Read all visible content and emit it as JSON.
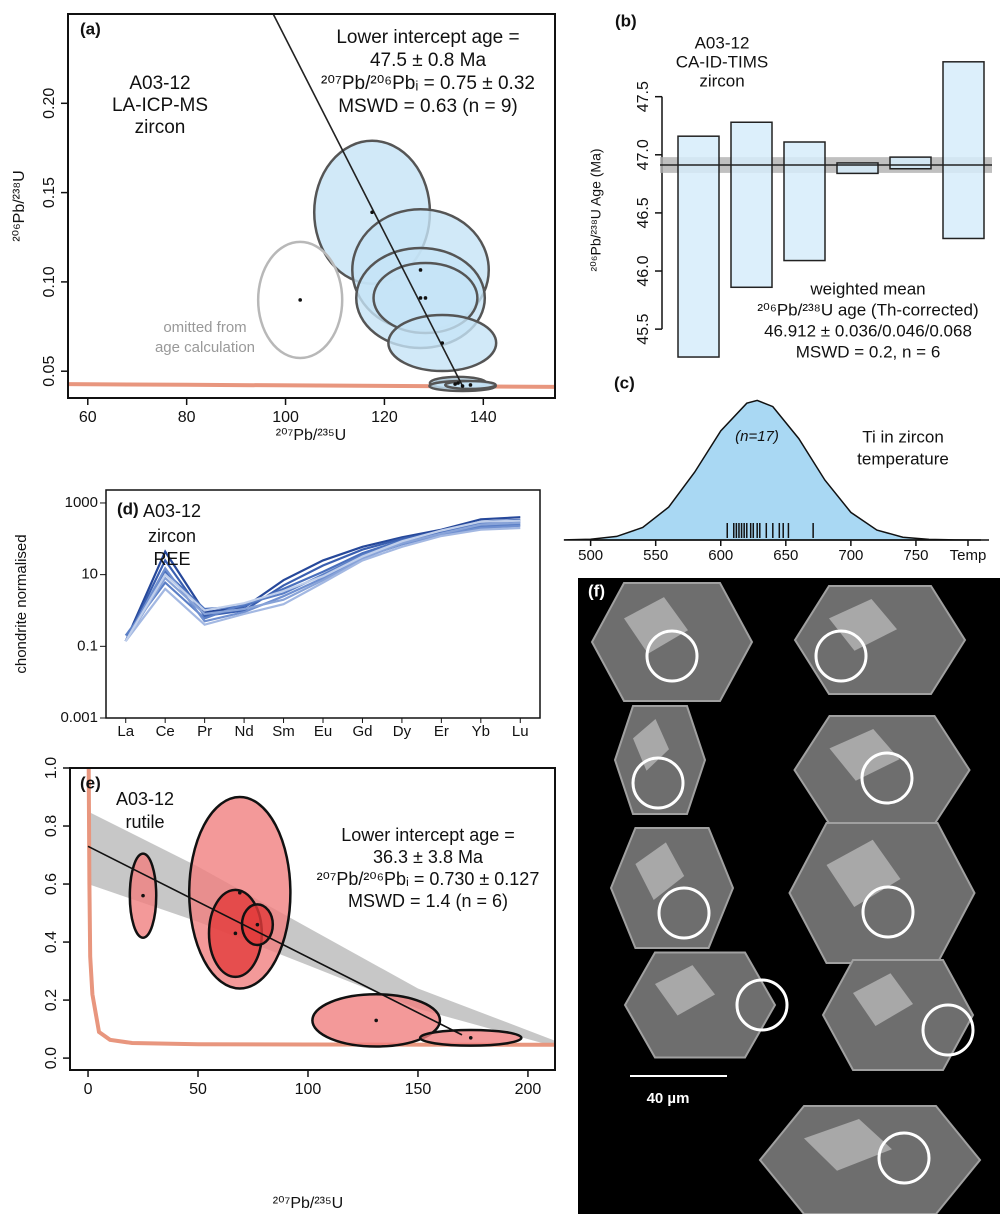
{
  "chart_data": [
    {
      "type": "concordia",
      "label": "(a)",
      "sample": [
        "A03-12",
        "LA-ICP-MS",
        "zircon"
      ],
      "annotation": [
        "Lower intercept age =",
        "47.5 ± 0.8 Ma",
        "²⁰⁷Pb/²⁰⁶Pbᵢ = 0.75 ± 0.32",
        "MSWD = 0.63 (n = 9)"
      ],
      "note": [
        "omitted from",
        "age calculation"
      ],
      "xlabel": "²⁰⁷Pb/²³⁵U",
      "ylabel": "²⁰⁶Pb/²³⁸U",
      "xlim": [
        56,
        154.5
      ],
      "ylim": [
        0.035,
        0.25
      ],
      "xticks": [
        60,
        80,
        100,
        120,
        140
      ],
      "yticks": [
        0.05,
        {
          "value": 0.1,
          "label": "0.10"
        },
        0.15,
        {
          "value": 0.2,
          "label": "0.20"
        }
      ],
      "series": [
        {
          "color": "#555555",
          "fill": "#c5e3f6",
          "x": [
            117.5,
            127.3,
            127.3,
            128.3,
            131.7,
            134.3,
            134.9,
            135.8,
            137.4
          ],
          "values": [
            0.139,
            0.1067,
            0.091,
            0.091,
            0.0658,
            0.0428,
            0.0434,
            0.0417,
            0.0423
          ],
          "x_err": [
            11.7,
            13.8,
            13,
            10.5,
            10.9,
            4.5,
            5.7,
            6.7,
            5.1
          ],
          "y_err": [
            0.04,
            0.034,
            0.028,
            0.0196,
            0.0157,
            0.0022,
            0.0034,
            0.0028,
            0.0022
          ]
        },
        {
          "color": "#b8b8b8",
          "fill": "none",
          "x": [
            102.96
          ],
          "values": [
            0.0899
          ],
          "x_err": [
            8.5
          ],
          "y_err": [
            0.0325
          ]
        }
      ],
      "regression": {
        "color": "#222222",
        "x": [
          97.5,
          135.8
        ],
        "values": [
          0.25,
          0.0417
        ]
      },
      "concordia": {
        "color": "#e8967e",
        "x": [
          56,
          80,
          154.5
        ],
        "values": [
          0.0428,
          0.0424,
          0.0412
        ]
      }
    },
    {
      "type": "range_bar",
      "label": "(b)",
      "sample": [
        "A03-12",
        "CA-ID-TIMS",
        "zircon"
      ],
      "annotation": [
        "weighted mean",
        "²⁰⁶Pb/²³⁸U age (Th-corrected)",
        "46.912 ± 0.036/0.046/0.068",
        "MSWD = 0.2, n = 6"
      ],
      "ylabel": "²⁰⁶Pb/²³⁸U Age (Ma)",
      "ylim": [
        45.2,
        47.85
      ],
      "yticks": [
        45.5,
        {
          "value": 46,
          "label": "46.0"
        },
        46.5,
        {
          "value": 47,
          "label": "47.0"
        },
        47.5
      ],
      "series": [
        {
          "color": "#222222",
          "fill": "#d6ecfa",
          "low": [
            45.26,
            45.86,
            46.09,
            46.84,
            46.88,
            46.28
          ],
          "high": [
            47.16,
            47.28,
            47.11,
            46.93,
            46.98,
            47.8
          ]
        }
      ],
      "mean": 46.912,
      "mean_err": 0.068,
      "mean_color": "#222222",
      "band_color": "#b0b0b0"
    },
    {
      "type": "density",
      "label": "(c)",
      "annotation": [
        "(n=17)"
      ],
      "title": [
        "Ti in zircon",
        "temperature"
      ],
      "xlim": [
        478,
        800
      ],
      "ylim": [
        0,
        0.01
      ],
      "xticks": [
        500,
        550,
        600,
        650,
        700,
        750,
        {
          "value": 790,
          "label": "Temp"
        }
      ],
      "x": [
        480,
        500,
        520,
        540,
        560,
        580,
        600,
        620,
        628,
        640,
        660,
        680,
        700,
        720,
        740,
        760,
        780,
        800
      ],
      "values": [
        1e-05,
        6e-05,
        0.00026,
        0.00089,
        0.00235,
        0.00485,
        0.0078,
        0.00977,
        0.00997,
        0.00953,
        0.00724,
        0.00428,
        0.00197,
        0.00071,
        0.0002,
        4e-05,
        1e-05,
        0
      ],
      "fill": "#a9d8f3",
      "color": "#111111",
      "rug": [
        605,
        610,
        612,
        614,
        616,
        618,
        620,
        623,
        625,
        628,
        630,
        635,
        640,
        645,
        648,
        652,
        671
      ]
    },
    {
      "type": "line",
      "label": "(d)",
      "sample": [
        "A03-12",
        "zircon",
        "REE"
      ],
      "ylabel": "chondrite normalised",
      "categories": [
        "La",
        "Ce",
        "Pr",
        "Nd",
        "Sm",
        "Eu",
        "Gd",
        "Dy",
        "Er",
        "Yb",
        "Lu"
      ],
      "log_y": true,
      "ylim": [
        0.001,
        2300
      ],
      "yticks": [
        0.001,
        0.1,
        10,
        1000
      ],
      "series": [
        {
          "color": "#26489a",
          "values": [
            0.14,
            44,
            0.9,
            1.2,
            7,
            25,
            60,
            110,
            180,
            350,
            400
          ]
        },
        {
          "color": "#3a5fb0",
          "values": [
            0.14,
            25,
            0.7,
            1.0,
            5,
            18,
            50,
            100,
            160,
            300,
            340
          ]
        },
        {
          "color": "#4a70bd",
          "values": [
            0.14,
            12,
            1.1,
            1.3,
            4,
            12,
            40,
            90,
            150,
            260,
            300
          ]
        },
        {
          "color": "#5b7fc6",
          "values": [
            0.2,
            6,
            0.6,
            1.5,
            3,
            10,
            35,
            80,
            140,
            220,
            250
          ]
        },
        {
          "color": "#7090d0",
          "values": [
            0.14,
            15,
            0.5,
            0.9,
            2.5,
            8,
            30,
            70,
            130,
            200,
            230
          ]
        },
        {
          "color": "#88a3d8",
          "values": [
            0.14,
            8,
            0.8,
            1.1,
            2,
            7,
            28,
            75,
            140,
            250,
            280
          ]
        },
        {
          "color": "#a3b8e2",
          "values": [
            0.14,
            4,
            0.4,
            0.8,
            1.5,
            6,
            25,
            60,
            120,
            180,
            200
          ]
        },
        {
          "color": "#c0cfeb",
          "values": [
            0.14,
            10,
            1.0,
            1.6,
            3.5,
            9,
            32,
            85,
            170,
            300,
            320
          ]
        }
      ]
    },
    {
      "type": "concordia",
      "label": "(e)",
      "sample": [
        "A03-12",
        "rutile"
      ],
      "annotation": [
        "Lower intercept age =",
        "36.3 ± 3.8 Ma",
        "²⁰⁷Pb/²⁰⁶Pbᵢ = 0.730 ± 0.127",
        "MSWD = 1.4 (n = 6)"
      ],
      "xlabel": "²⁰⁷Pb/²³⁵U",
      "xlim": [
        -8.2,
        212.3
      ],
      "ylim": [
        -0.041,
        1.0
      ],
      "xticks": [
        0,
        50,
        100,
        150,
        200
      ],
      "yticks": [
        {
          "value": 0,
          "label": "0.0"
        },
        0.2,
        0.4,
        0.6,
        0.8,
        {
          "value": 1,
          "label": "1.0"
        }
      ],
      "series": [
        {
          "color": "#111111",
          "fill": "#f07f7f",
          "x": [
            25,
            69,
            131,
            174
          ],
          "values": [
            0.56,
            0.57,
            0.13,
            0.07
          ],
          "x_err": [
            6,
            23,
            29,
            23
          ],
          "y_err": [
            0.145,
            0.33,
            0.09,
            0.027
          ]
        },
        {
          "color": "#111111",
          "fill": "#e23b3b",
          "x": [
            67,
            77
          ],
          "values": [
            0.43,
            0.46
          ],
          "x_err": [
            12,
            7
          ],
          "y_err": [
            0.15,
            0.07
          ]
        }
      ],
      "band": {
        "fill": "#bdbdbd",
        "x": [
          0,
          50,
          100,
          150,
          212.3
        ],
        "upper": [
          0.85,
          0.66,
          0.45,
          0.24,
          0.06
        ],
        "lower": [
          0.6,
          0.47,
          0.32,
          0.17,
          0.04
        ]
      },
      "regression": {
        "color": "#111111",
        "x": [
          0,
          170
        ],
        "values": [
          0.73,
          0.08
        ]
      },
      "concordia": {
        "color": "#e8967e",
        "x": [
          0.3,
          0.6,
          1,
          2,
          5,
          10,
          20,
          50,
          100,
          212.3
        ],
        "values": [
          1.0,
          0.6,
          0.35,
          0.22,
          0.09,
          0.063,
          0.052,
          0.048,
          0.047,
          0.046
        ]
      }
    }
  ],
  "panel_f": {
    "label": "(f)",
    "scale_bar": "40 µm"
  }
}
